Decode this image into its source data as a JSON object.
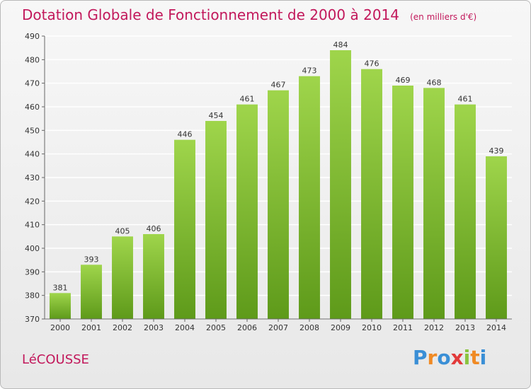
{
  "chart_data": {
    "type": "bar",
    "title": "Dotation Globale de Fonctionnement de 2000 à 2014",
    "subtitle": "(en milliers d'€)",
    "categories": [
      "2000",
      "2001",
      "2002",
      "2003",
      "2004",
      "2005",
      "2006",
      "2007",
      "2008",
      "2009",
      "2010",
      "2011",
      "2012",
      "2013",
      "2014"
    ],
    "values": [
      381,
      393,
      405,
      406,
      446,
      454,
      461,
      467,
      473,
      484,
      476,
      469,
      468,
      461,
      439
    ],
    "ylim": [
      370,
      490
    ],
    "yticks": [
      370,
      380,
      390,
      400,
      410,
      420,
      430,
      440,
      450,
      460,
      470,
      480,
      490
    ],
    "grid": true,
    "bar_color_top": "#9fd54b",
    "bar_color_bottom": "#5e9a1a"
  },
  "footer": {
    "commune": "LéCOUSSE",
    "logo_text": "Proxiti",
    "logo_colors": [
      "#3a8fd6",
      "#f08a24",
      "#3a8fd6",
      "#e23a3a",
      "#8ac43f",
      "#f08a24",
      "#3a8fd6"
    ]
  },
  "colors": {
    "title": "#c2185b",
    "axis": "#666666",
    "grid": "#ffffff"
  }
}
